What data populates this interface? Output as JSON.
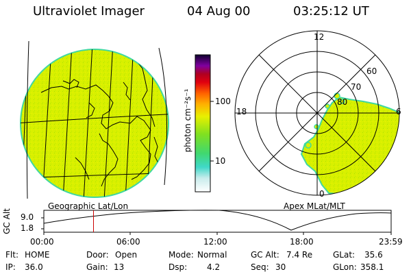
{
  "header": {
    "instrument": "Ultraviolet Imager",
    "date": "04 Aug 00",
    "time": "03:25:12 UT"
  },
  "left_panel": {
    "label": "Geographic Lat/Lon"
  },
  "right_panel": {
    "label": "Apex MLat/MLT",
    "clock_labels": {
      "top": "12",
      "left": "18",
      "right": "6",
      "bottom": "0"
    },
    "lat_labels": [
      "60",
      "70",
      "80"
    ]
  },
  "colorbar": {
    "unit": "photon cm⁻²s⁻¹",
    "tick_labels": [
      "100",
      "10"
    ]
  },
  "altitude_plot": {
    "ylabel": "GC Alt",
    "y_ticks": [
      "9.0",
      "1.8"
    ],
    "x_ticks": [
      "00:00",
      "06:00",
      "12:00",
      "18:00",
      "23:59"
    ],
    "current_time_fraction": 0.143
  },
  "info": {
    "flt_label": "Flt:",
    "flt_value": "HOME",
    "ip_label": "IP:",
    "ip_value": "36.0",
    "door_label": "Door:",
    "door_value": "Open",
    "gain_label": "Gain:",
    "gain_value": "13",
    "mode_label": "Mode:",
    "mode_value": "Normal",
    "dsp_label": "Dsp:",
    "dsp_value": "4.2",
    "gcalt_label": "GC Alt:",
    "gcalt_value": "7.4 Re",
    "seq_label": "Seq:",
    "seq_value": "30",
    "glat_label": "GLat:",
    "glat_value": "35.6",
    "glon_label": "GLon:",
    "glon_value": "358.1"
  },
  "colors": {
    "fill": "#d8f000",
    "edge": "#40d8a0",
    "marker": "#cc0000"
  }
}
